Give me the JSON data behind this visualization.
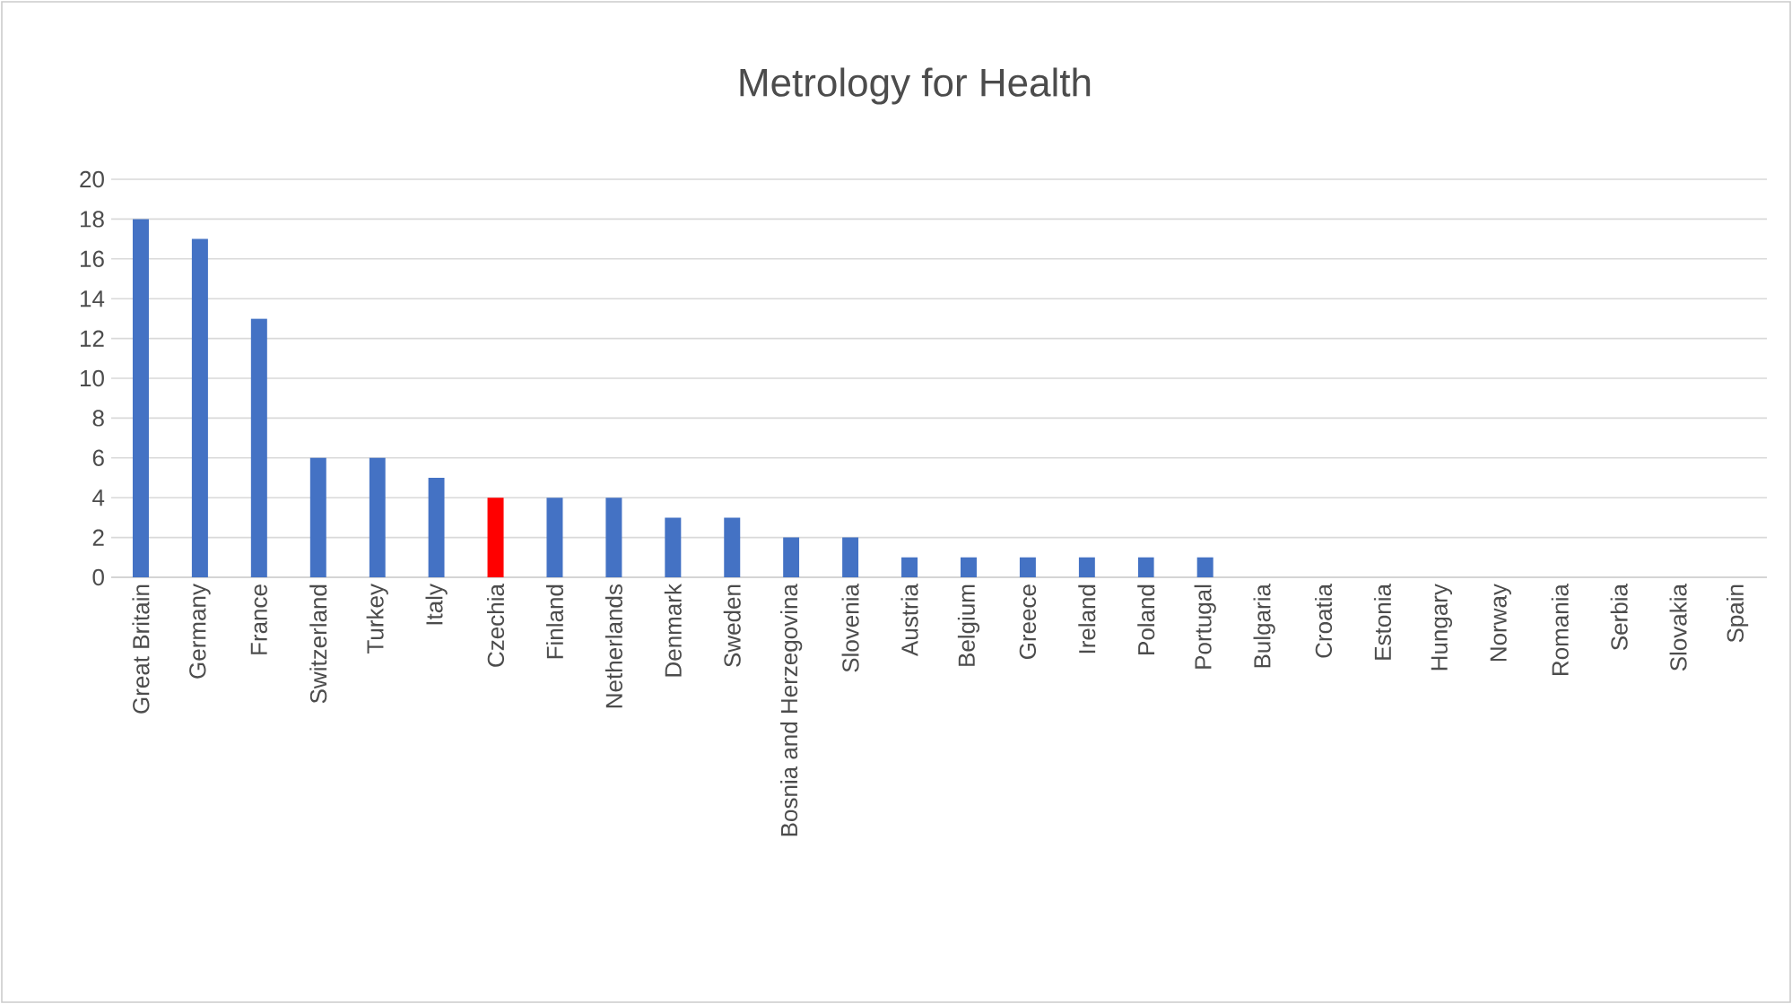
{
  "chart_data": {
    "type": "bar",
    "title": "Metrology for Health",
    "categories": [
      "Great Britain",
      "Germany",
      "France",
      "Switzerland",
      "Turkey",
      "Italy",
      "Czechia",
      "Finland",
      "Netherlands",
      "Denmark",
      "Sweden",
      "Bosnia and Herzegovina",
      "Slovenia",
      "Austria",
      "Belgium",
      "Greece",
      "Ireland",
      "Poland",
      "Portugal",
      "Bulgaria",
      "Croatia",
      "Estonia",
      "Hungary",
      "Norway",
      "Romania",
      "Serbia",
      "Slovakia",
      "Spain"
    ],
    "values": [
      18,
      17,
      13,
      6,
      6,
      5,
      4,
      4,
      4,
      3,
      3,
      2,
      2,
      1,
      1,
      1,
      1,
      1,
      1,
      0,
      0,
      0,
      0,
      0,
      0,
      0,
      0,
      0
    ],
    "colors": [
      "#4472c4",
      "#4472c4",
      "#4472c4",
      "#4472c4",
      "#4472c4",
      "#4472c4",
      "#ff0000",
      "#4472c4",
      "#4472c4",
      "#4472c4",
      "#4472c4",
      "#4472c4",
      "#4472c4",
      "#4472c4",
      "#4472c4",
      "#4472c4",
      "#4472c4",
      "#4472c4",
      "#4472c4",
      "#4472c4",
      "#4472c4",
      "#4472c4",
      "#4472c4",
      "#4472c4",
      "#4472c4",
      "#4472c4",
      "#4472c4",
      "#4472c4"
    ],
    "ylim": [
      0,
      20
    ],
    "yticks": [
      0,
      2,
      4,
      6,
      8,
      10,
      12,
      14,
      16,
      18,
      20
    ],
    "grid": "y"
  }
}
